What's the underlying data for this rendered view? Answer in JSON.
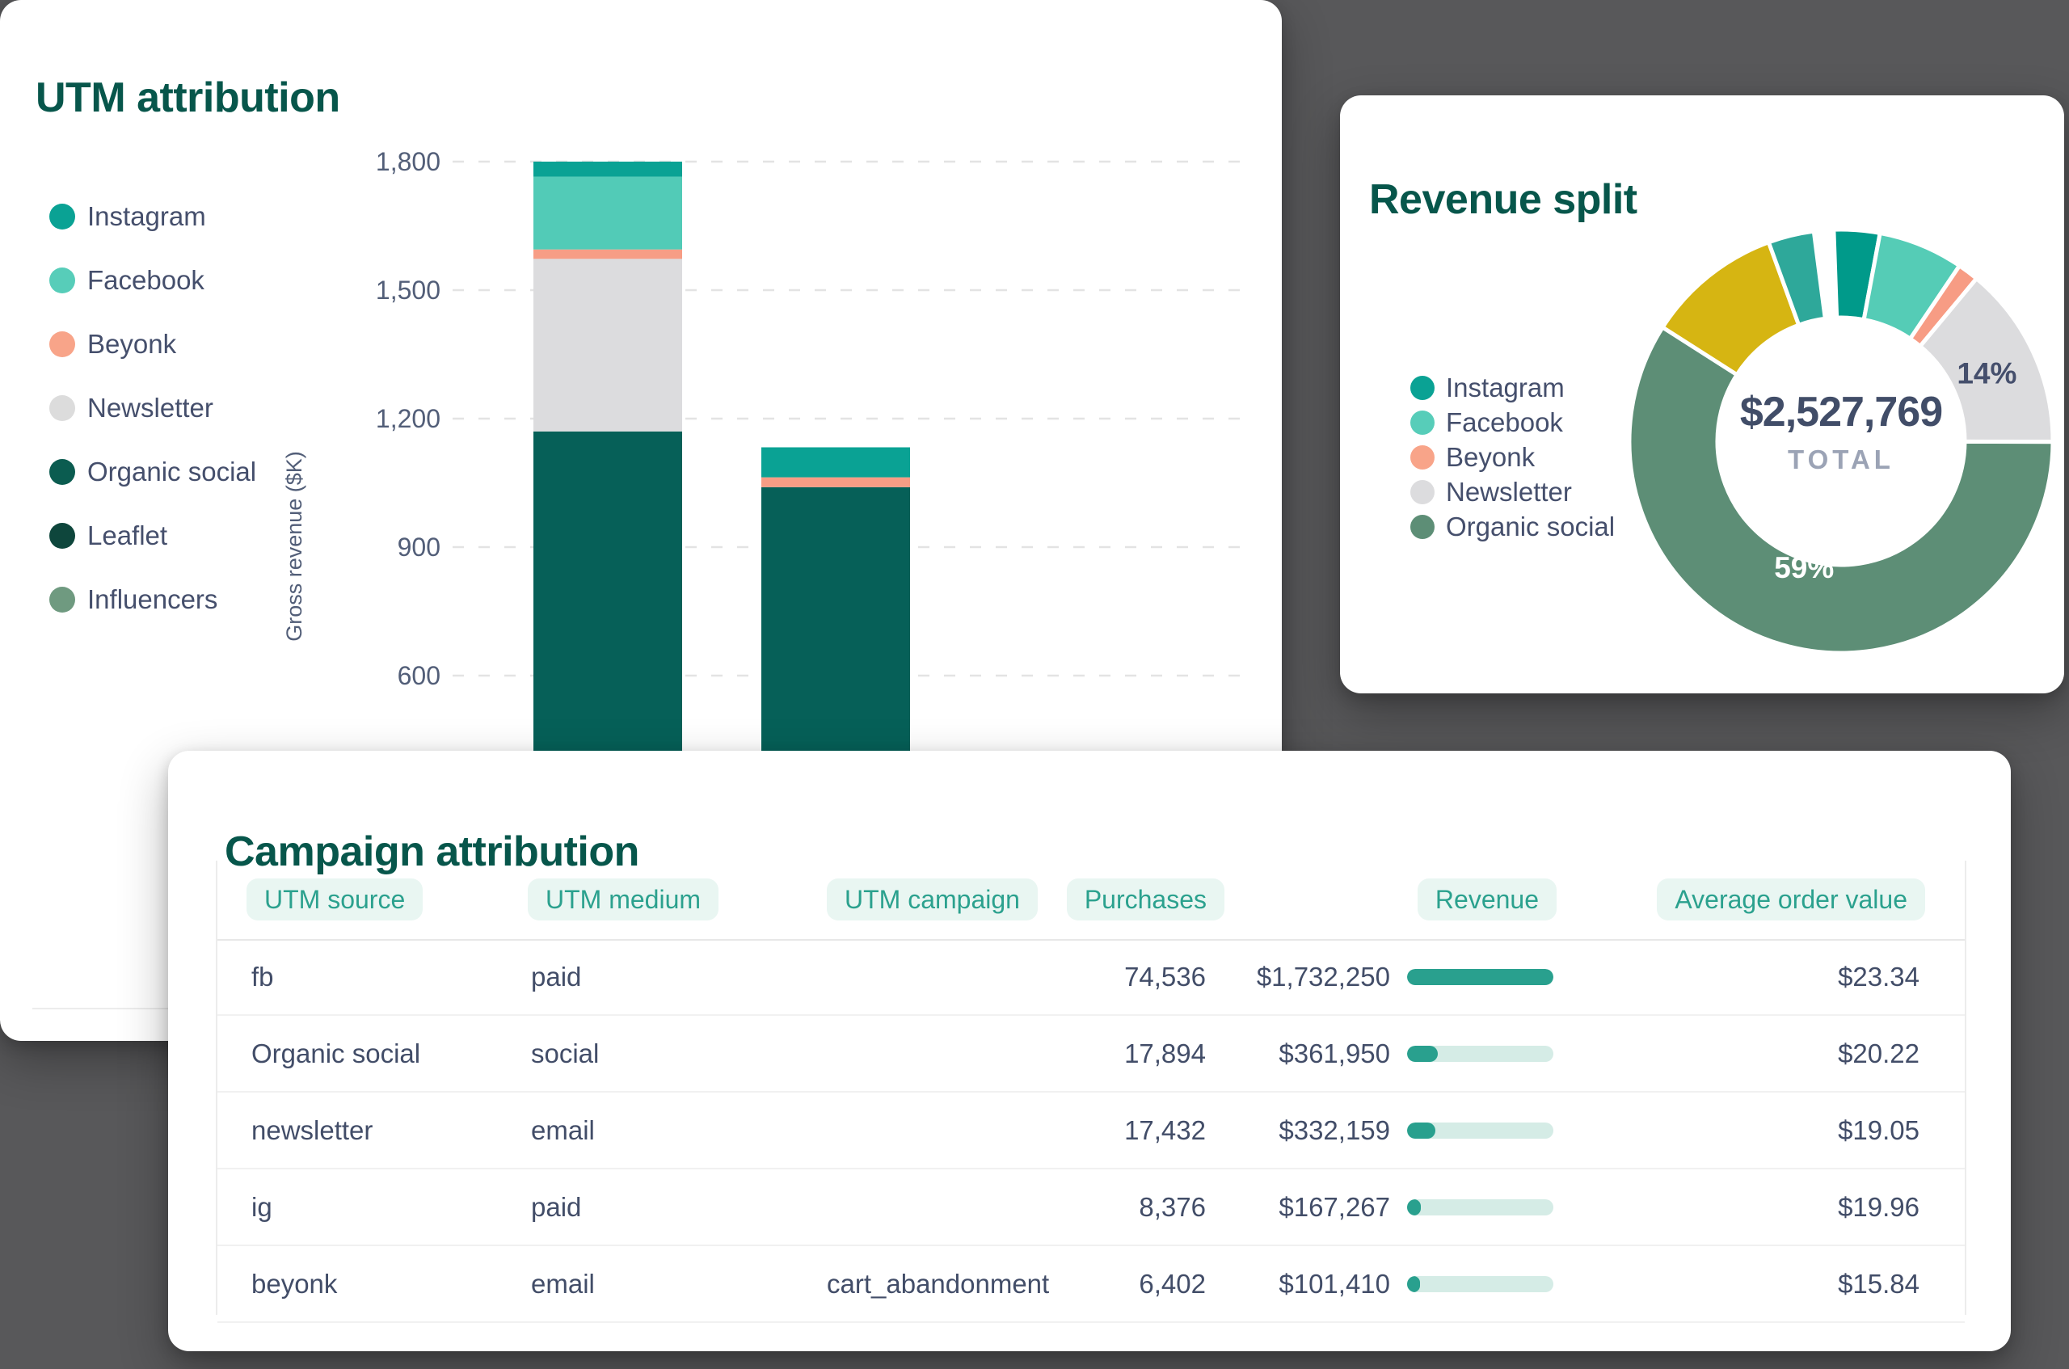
{
  "background_color": "#58585a",
  "utm_card": {
    "title": "UTM attribution",
    "legend": [
      {
        "label": "Instagram",
        "color": "#0aa294"
      },
      {
        "label": "Facebook",
        "color": "#57cdb9"
      },
      {
        "label": "Beyonk",
        "color": "#f8a489"
      },
      {
        "label": "Newsletter",
        "color": "#dcdcdc"
      },
      {
        "label": "Organic social",
        "color": "#0b5c50"
      },
      {
        "label": "Leaflet",
        "color": "#0e463c"
      },
      {
        "label": "Influencers",
        "color": "#6f9a80"
      }
    ],
    "chart_data": {
      "type": "bar",
      "stacked": true,
      "unit": "$K",
      "ylabel": "Gross revenue ($K)",
      "ytick_values": [
        1800,
        1500,
        1200,
        900,
        600
      ],
      "ytick_labels": [
        "1,800",
        "1,500",
        "1,200",
        "900",
        "600"
      ],
      "ylim": [
        0,
        1900
      ],
      "grid": "dashed horizontal, x-axis and category labels hidden behind overlapping card",
      "categories": [
        "",
        ""
      ],
      "series": [
        {
          "name": "Organic social",
          "color": "#066058",
          "values": [
            1170,
            1040
          ]
        },
        {
          "name": "Newsletter",
          "color": "#dcdcde",
          "values": [
            403,
            0
          ]
        },
        {
          "name": "Beyonk",
          "color": "#f79d85",
          "values": [
            22,
            23
          ]
        },
        {
          "name": "Facebook",
          "color": "#52cbb7",
          "values": [
            170,
            0
          ]
        },
        {
          "name": "Instagram",
          "color": "#0aa294",
          "values": [
            35,
            70
          ]
        }
      ]
    }
  },
  "revenue_card": {
    "title": "Revenue split",
    "legend": [
      {
        "label": "Instagram",
        "color": "#0aa294"
      },
      {
        "label": "Facebook",
        "color": "#57cdb9"
      },
      {
        "label": "Beyonk",
        "color": "#f8a489"
      },
      {
        "label": "Newsletter",
        "color": "#dcdcde"
      },
      {
        "label": "Organic social",
        "color": "#5d8e76"
      }
    ],
    "chart_data": {
      "type": "donut",
      "title": "Revenue split",
      "center_value": "$2,527,769",
      "center_label": "TOTAL",
      "start_angle_deg": -2,
      "legend_position": "left",
      "segments": [
        {
          "name": "Instagram",
          "pct": 3.5,
          "color": "#009a8a"
        },
        {
          "name": "Facebook",
          "pct": 6.5,
          "color": "#55ccb6"
        },
        {
          "name": "Beyonk",
          "pct": 1.6,
          "color": "#f79c84"
        },
        {
          "name": "Newsletter",
          "pct": 14,
          "color": "#dcdcde",
          "label": "14%",
          "label_color": "#454f6c",
          "label_radius": 0.76
        },
        {
          "name": "Organic social",
          "pct": 59,
          "color": "#5d8e76",
          "label": "59%",
          "label_color": "#ffffff",
          "label_radius": 0.62
        },
        {
          "name": "",
          "pct": 10.4,
          "color": "#d6b512"
        },
        {
          "name": "",
          "pct": 3.5,
          "color": "#2ea89a"
        }
      ]
    }
  },
  "campaign_card": {
    "title": "Campaign attribution",
    "table": {
      "columns": [
        "UTM source",
        "UTM medium",
        "UTM campaign",
        "Purchases",
        "Revenue",
        "Average order value"
      ],
      "max_revenue_value": 1732250,
      "rows": [
        {
          "utm_source": "fb",
          "utm_medium": "paid",
          "utm_campaign": "",
          "purchases": "74,536",
          "revenue": "$1,732,250",
          "revenue_value": 1732250,
          "aov": "$23.34"
        },
        {
          "utm_source": "Organic social",
          "utm_medium": "social",
          "utm_campaign": "",
          "purchases": "17,894",
          "revenue": "$361,950",
          "revenue_value": 361950,
          "aov": "$20.22"
        },
        {
          "utm_source": "newsletter",
          "utm_medium": "email",
          "utm_campaign": "",
          "purchases": "17,432",
          "revenue": "$332,159",
          "revenue_value": 332159,
          "aov": "$19.05"
        },
        {
          "utm_source": "ig",
          "utm_medium": "paid",
          "utm_campaign": "",
          "purchases": "8,376",
          "revenue": "$167,267",
          "revenue_value": 167267,
          "aov": "$19.96"
        },
        {
          "utm_source": "beyonk",
          "utm_medium": "email",
          "utm_campaign": "cart_abandonment",
          "purchases": "6,402",
          "revenue": "$101,410",
          "revenue_value": 101410,
          "aov": "$15.84"
        }
      ]
    }
  }
}
